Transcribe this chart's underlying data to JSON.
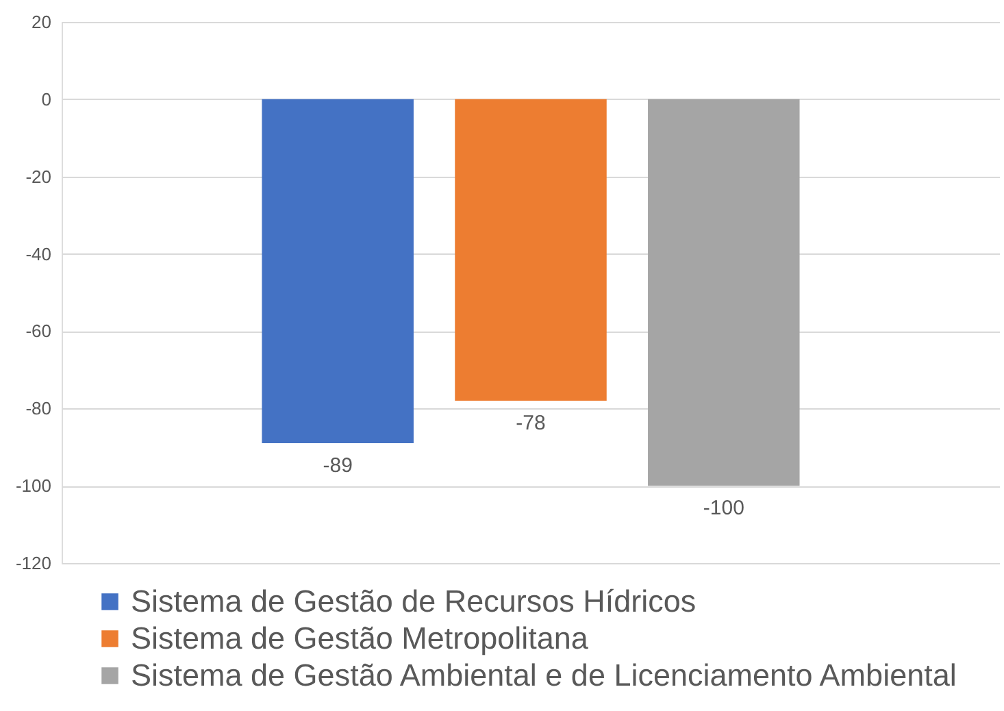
{
  "chart_data": {
    "type": "bar",
    "categories": [
      null
    ],
    "series": [
      {
        "name": "Sistema de Gestão de Recursos Hídricos",
        "color": "#4472c4",
        "values": [
          -89
        ]
      },
      {
        "name": "Sistema de Gestão Metropolitana",
        "color": "#ed7d31",
        "values": [
          -78
        ]
      },
      {
        "name": "Sistema de Gestão Ambiental e de Licenciamento Ambiental",
        "color": "#a5a5a5",
        "values": [
          -100
        ]
      }
    ],
    "ylim": [
      -120,
      20
    ],
    "yticks": [
      -120,
      -100,
      -80,
      -60,
      -40,
      -20,
      0,
      20
    ],
    "grid": "y",
    "legend": "bottom",
    "data_labels": true,
    "tick_labels": "y"
  }
}
